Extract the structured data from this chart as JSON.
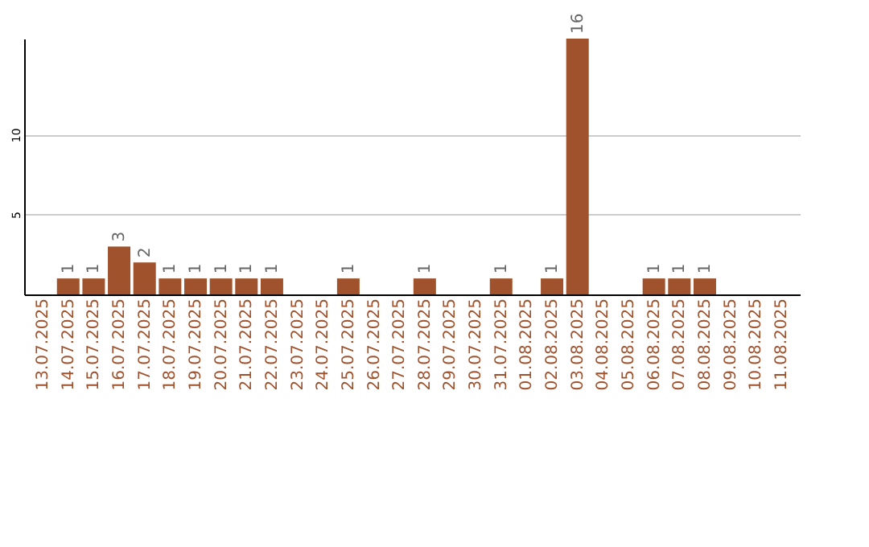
{
  "chart_data": {
    "type": "bar",
    "categories": [
      "13.07.2025",
      "14.07.2025",
      "15.07.2025",
      "16.07.2025",
      "17.07.2025",
      "18.07.2025",
      "19.07.2025",
      "20.07.2025",
      "21.07.2025",
      "22.07.2025",
      "23.07.2025",
      "24.07.2025",
      "25.07.2025",
      "26.07.2025",
      "27.07.2025",
      "28.07.2025",
      "29.07.2025",
      "30.07.2025",
      "31.07.2025",
      "01.08.2025",
      "02.08.2025",
      "03.08.2025",
      "04.08.2025",
      "05.08.2025",
      "06.08.2025",
      "07.08.2025",
      "08.08.2025",
      "09.08.2025",
      "10.08.2025",
      "11.08.2025"
    ],
    "values": [
      0,
      1,
      1,
      3,
      2,
      1,
      1,
      1,
      1,
      1,
      0,
      0,
      1,
      0,
      0,
      1,
      0,
      0,
      1,
      0,
      1,
      16,
      0,
      0,
      1,
      1,
      1,
      0,
      0,
      0
    ],
    "value_labels": [
      null,
      "1",
      "1",
      "3",
      "2",
      "1",
      "1",
      "1",
      "1",
      "1",
      null,
      null,
      "1",
      null,
      null,
      "1",
      null,
      null,
      "1",
      null,
      "1",
      "16",
      null,
      null,
      "1",
      "1",
      "1",
      null,
      null,
      null
    ],
    "color": "#a0522d",
    "ylim": [
      0,
      16
    ],
    "yticks": [
      5,
      10
    ],
    "grid": "y"
  }
}
